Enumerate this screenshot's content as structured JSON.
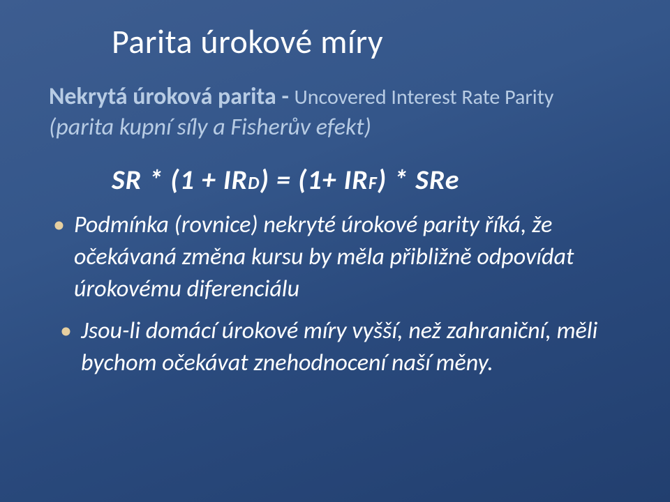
{
  "slide": {
    "background_gradient": [
      "#3d5d90",
      "#34568a",
      "#2a4a7d",
      "#223f6f"
    ],
    "title": "Parita úrokové míry",
    "title_fontsize": 48,
    "title_color": "#ffffff",
    "subtitle": {
      "strong": "Nekrytá úroková parita - ",
      "rest": "Uncovered Interest Rate Parity",
      "line2": "(parita kupní síly a Fisherův efekt)",
      "color": "#b8cce4",
      "fontsize": 34
    },
    "formula": {
      "text_prefix": "SR * (1 + IR",
      "sub1": "D",
      "mid": ")  =  (1+ IR",
      "sub2": "F",
      "suffix": ")   *  SRe",
      "fontsize": 40,
      "color": "#ffffff"
    },
    "bullets": [
      "Podmínka (rovnice) nekryté úrokové parity říká, že očekávaná změna kursu by měla přibližně odpovídat úrokovému diferenciálu",
      "Jsou-li domácí úrokové míry vyšší, než zahraniční, měli bychom očekávat znehodnocení naší měny."
    ],
    "bullet_marker_color": "#e6cfa0",
    "bullet_fontsize": 34,
    "bullet_color": "#ffffff"
  }
}
